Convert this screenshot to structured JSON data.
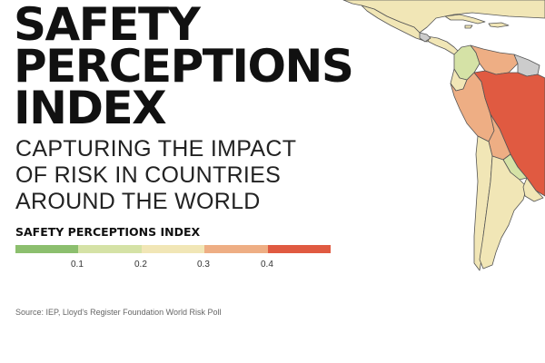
{
  "title_lines": [
    "SAFETY",
    "PERCEPTIONS",
    "INDEX"
  ],
  "subtitle_lines": [
    "CAPTURING THE IMPACT",
    "OF RISK IN COUNTRIES",
    "AROUND THE WORLD"
  ],
  "legend": {
    "title": "SAFETY PERCEPTIONS INDEX",
    "colors": [
      "#8cbf6e",
      "#d5e2a6",
      "#f1e6b6",
      "#eeae84",
      "#e05a41"
    ],
    "ticks": [
      "0.1",
      "0.2",
      "0.3",
      "0.4"
    ]
  },
  "source": "Source: IEP, Lloyd's Register Foundation World Risk Poll",
  "map_colors": {
    "usa": "#f1e6b6",
    "mexico": "#f1e6b6",
    "central_america": "#f1e6b6",
    "caribbean": "#f1e6b6",
    "no_data": "#cccccc",
    "colombia": "#d5e2a6",
    "venezuela": "#eeae84",
    "guyana": "#cccccc",
    "ecuador": "#f1e6b6",
    "peru": "#eeae84",
    "brazil": "#e05a41",
    "bolivia": "#eeae84",
    "paraguay": "#d5e2a6",
    "chile": "#f1e6b6",
    "argentina": "#f1e6b6",
    "uruguay": "#f1e6b6",
    "border": "#555555"
  }
}
